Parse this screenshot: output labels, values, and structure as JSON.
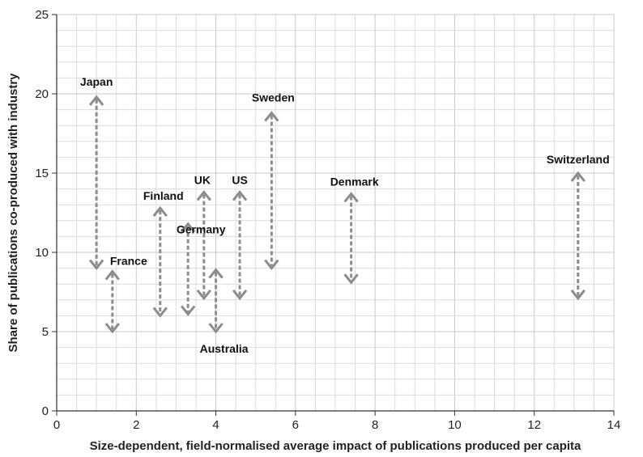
{
  "chart_data": {
    "type": "range-arrows",
    "xlabel": "Size-dependent, field-normalised average impact of publications produced per capita",
    "ylabel": "Share of publications co-produced with industry",
    "xlim": [
      0,
      14
    ],
    "ylim": [
      0,
      25
    ],
    "x_ticks": [
      "0",
      "2",
      "4",
      "6",
      "8",
      "10",
      "12",
      "14"
    ],
    "y_ticks": [
      "0",
      "5",
      "10",
      "15",
      "20",
      "25"
    ],
    "grid": "major and minor",
    "colors": {
      "arrow": "#8c8c8c",
      "grid": "#dcdcdc",
      "axis": "#333333"
    },
    "series": [
      {
        "name": "Japan",
        "x": 1.0,
        "y_low": 9.0,
        "y_high": 19.8
      },
      {
        "name": "France",
        "x": 1.4,
        "y_low": 5.0,
        "y_high": 8.8
      },
      {
        "name": "Finland",
        "x": 2.6,
        "y_low": 6.0,
        "y_high": 12.8
      },
      {
        "name": "Germany",
        "x": 3.3,
        "y_low": 6.1,
        "y_high": 11.8
      },
      {
        "name": "UK",
        "x": 3.7,
        "y_low": 7.1,
        "y_high": 13.8
      },
      {
        "name": "Australia",
        "x": 4.0,
        "y_low": 5.0,
        "y_high": 8.9
      },
      {
        "name": "US",
        "x": 4.6,
        "y_low": 7.1,
        "y_high": 13.8
      },
      {
        "name": "Sweden",
        "x": 5.4,
        "y_low": 9.0,
        "y_high": 18.8
      },
      {
        "name": "Denmark",
        "x": 7.4,
        "y_low": 8.1,
        "y_high": 13.7
      },
      {
        "name": "Switzerland",
        "x": 13.1,
        "y_low": 7.1,
        "y_high": 15.0
      }
    ]
  }
}
